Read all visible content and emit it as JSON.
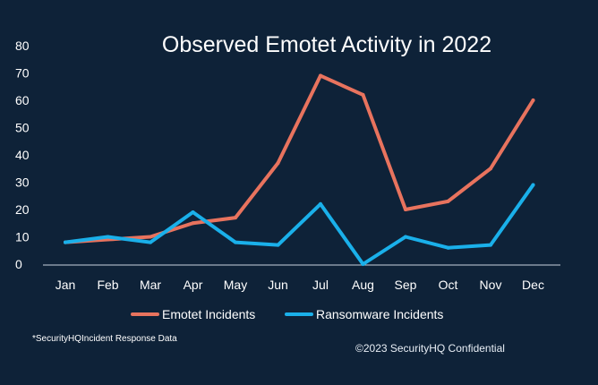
{
  "chart_data": {
    "type": "line",
    "title": "Observed Emotet Activity in 2022",
    "categories": [
      "Jan",
      "Feb",
      "Mar",
      "Apr",
      "May",
      "Jun",
      "Jul",
      "Aug",
      "Sep",
      "Oct",
      "Nov",
      "Dec"
    ],
    "ylim": [
      0,
      80
    ],
    "yticks": [
      "0",
      "10",
      "20",
      "30",
      "40",
      "50",
      "60",
      "70",
      "80"
    ],
    "grid": false,
    "legend_position": "bottom",
    "series": [
      {
        "name": "Emotet Incidents",
        "color": "#e8735e",
        "values": [
          8,
          9,
          10,
          15,
          17,
          37,
          69,
          62,
          20,
          23,
          35,
          60
        ]
      },
      {
        "name": "Ransomware Incidents",
        "color": "#1ab0ea",
        "values": [
          8,
          10,
          8,
          19,
          8,
          7,
          22,
          0,
          10,
          6,
          7,
          29
        ]
      }
    ]
  },
  "footnote": "*SecurityHQIncident Response Data",
  "copyright": "©2023 SecurityHQ Confidential"
}
